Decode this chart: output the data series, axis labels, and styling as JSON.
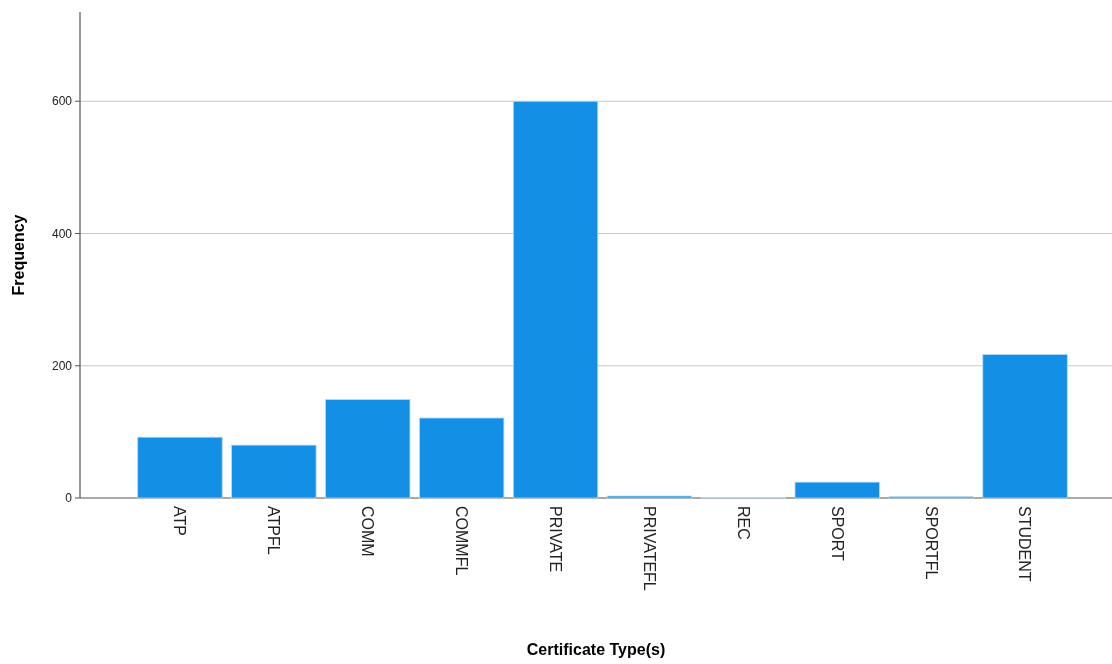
{
  "chart_data": {
    "type": "bar",
    "xlabel": "Certificate Type(s)",
    "ylabel": "Frequency",
    "categories": [
      "ATP",
      "ATPFL",
      "COMM",
      "COMMFL",
      "PRIVATE",
      "PRIVATEFL",
      "REC",
      "SPORT",
      "SPORTFL",
      "STUDENT"
    ],
    "values": [
      92,
      80,
      149,
      121,
      600,
      3,
      1,
      24,
      2,
      217
    ],
    "color": "#1390e6",
    "ylim": [
      0,
      735
    ],
    "yticks": [
      0,
      200,
      400,
      600
    ],
    "grid": "y"
  }
}
